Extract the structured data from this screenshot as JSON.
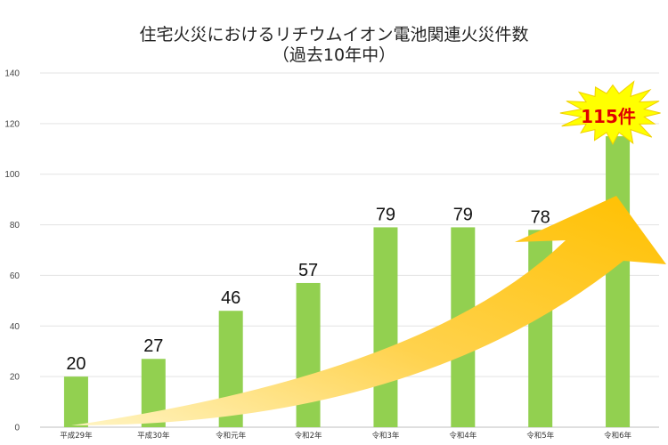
{
  "chart_data": {
    "type": "bar",
    "title": "住宅火災におけるリチウムイオン電池関連火災件数",
    "subtitle": "（過去10年中）",
    "categories": [
      "平成29年",
      "平成30年",
      "令和元年",
      "令和2年",
      "令和3年",
      "令和4年",
      "令和5年",
      "令和6年"
    ],
    "values": [
      20,
      27,
      46,
      57,
      79,
      79,
      78,
      115
    ],
    "ylim": [
      0,
      140
    ],
    "yticks": [
      0,
      20,
      40,
      60,
      80,
      100,
      120,
      140
    ],
    "grid": true,
    "bar_color": "#92d050",
    "highlight": {
      "text": "115件",
      "category_index": 7,
      "burst_color": "#ffff00",
      "text_color": "#e00000"
    },
    "trend_arrow_color": "#ffc000"
  }
}
